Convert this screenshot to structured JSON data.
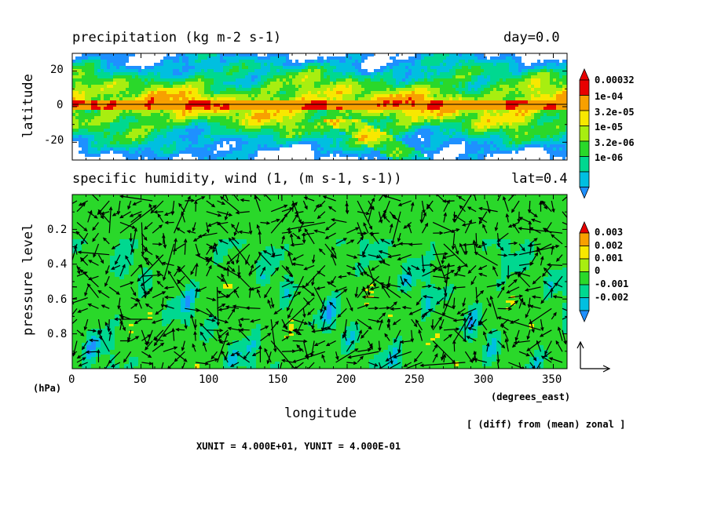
{
  "colors": {
    "white": "#ffffff",
    "blue": "#1e90ff",
    "cyan": "#00bfe0",
    "teal": "#00d890",
    "green": "#2ad82a",
    "lime": "#a8ee10",
    "yellow": "#f8e800",
    "orange": "#f8a000",
    "red": "#e80000",
    "arrow": "#000000"
  },
  "panel_top": {
    "title": "precipitation (kg m-2 s-1)",
    "time_label": "day=0.0",
    "ylabel": "latitude",
    "yticks": [
      "20",
      "0",
      "-20"
    ],
    "colorbar": [
      "0.00032",
      "1e-04",
      "3.2e-05",
      "1e-05",
      "3.2e-06",
      "1e-06"
    ]
  },
  "panel_bottom": {
    "title": "specific humidity, wind (1, (m s-1, s-1))",
    "lat_label": "lat=0.4",
    "ylabel": "pressure level",
    "yunit": "(hPa)",
    "yticks": [
      "0.2",
      "0.4",
      "0.6",
      "0.8"
    ],
    "xticks": [
      "0",
      "50",
      "100",
      "150",
      "200",
      "250",
      "300",
      "350"
    ],
    "xunit": "(degrees_east)",
    "xlabel": "longitude",
    "colorbar": [
      "0.003",
      "0.002",
      "0.001",
      "0",
      "-0.001",
      "-0.002"
    ],
    "note": "[ (diff) from (mean) zonal ]",
    "units_line": "XUNIT = 4.000E+01, YUNIT = 4.000E-01"
  },
  "chart_data": [
    {
      "type": "heatmap",
      "title": "precipitation (kg m-2 s-1)",
      "annotation": "day=0.0",
      "xlabel": "",
      "ylabel": "latitude",
      "xlim": [
        0,
        360
      ],
      "ylim": [
        -30,
        30
      ],
      "yticks": [
        20,
        0,
        -20
      ],
      "contour_levels": [
        1e-06,
        3.2e-06,
        1e-05,
        3.2e-05,
        0.0001,
        0.00032
      ],
      "reference_line_lat": 0,
      "description": "band of maximum precipitation (above 1e-04) along the equator, decreasing toward +-30 latitude"
    },
    {
      "type": "heatmap",
      "title": "specific humidity, wind (1, (m s-1, s-1))",
      "annotation": "lat=0.4",
      "xlabel": "longitude",
      "ylabel": "pressure level",
      "xlim": [
        0,
        360
      ],
      "ylim": [
        1.0,
        0.0
      ],
      "xticks": [
        0,
        50,
        100,
        150,
        200,
        250,
        300,
        350
      ],
      "yticks": [
        0.2,
        0.4,
        0.6,
        0.8
      ],
      "contour_levels": [
        -0.002,
        -0.001,
        0,
        0.001,
        0.002,
        0.003
      ],
      "vector_reference": {
        "XUNIT": 40.0,
        "YUNIT": 0.4
      }
    }
  ]
}
